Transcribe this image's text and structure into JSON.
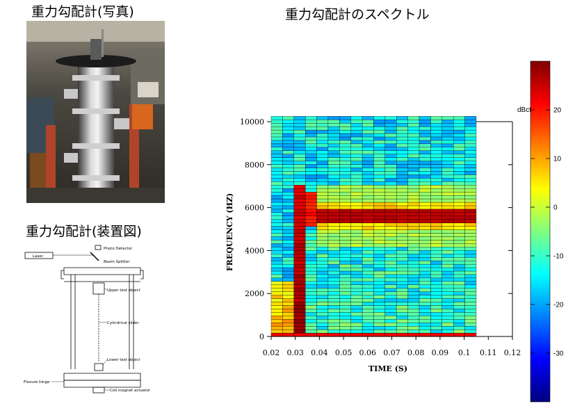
{
  "left_panel": {
    "photo_title": "重力勾配計(写真)",
    "diagram_title": "重力勾配計(装置図)",
    "diagram_labels": {
      "laser": "Laser",
      "photo_detector": "Photo Detector",
      "beam_splitter": "Beam Splitter",
      "upper_test_object": "Upper test object",
      "cylindrical_slider": "Cylindrical slider",
      "lower_test_object": "Lower test object",
      "flexure_hinge": "Flexure hinge",
      "coil_magnet_actuator": "Coil magnet actuator"
    }
  },
  "chart_data": {
    "type": "heatmap",
    "title": "重力勾配計のスペクトル",
    "xlabel": "TIME (S)",
    "ylabel": "FREQUENCY (HZ)",
    "xlim": [
      0.02,
      0.12
    ],
    "ylim": [
      0,
      10000
    ],
    "data_x_range": [
      0.02,
      0.105
    ],
    "time_bins": 18,
    "freq_bins": 64,
    "xticks": [
      "0.02",
      "0.03",
      "0.04",
      "0.05",
      "0.06",
      "0.07",
      "0.08",
      "0.09",
      "0.1",
      "0.11",
      "0.12"
    ],
    "yticks": [
      "0",
      "2000",
      "4000",
      "6000",
      "8000",
      "10000"
    ],
    "colorbar": {
      "unit": "dBct",
      "min": -40,
      "max": 30,
      "ticks": [
        "20",
        "10",
        "0",
        "-10",
        "-20",
        "-30"
      ],
      "colors": [
        "#00007f",
        "#0000ff",
        "#0080ff",
        "#00ffff",
        "#80ff80",
        "#ffff00",
        "#ff8000",
        "#ff0000",
        "#7f0000"
      ]
    },
    "features": {
      "broadband_pulse_time": 0.033,
      "broadband_pulse_level_db": 24,
      "high_onset_time": 0.03,
      "tone_start_time": 0.04,
      "tone_frequency_hz": 5600,
      "tone_initial_frequency_hz": 6200,
      "tone_level_db": 26,
      "background_level_db": -14,
      "early_low_freq_level_db": 10
    },
    "grid": false
  }
}
